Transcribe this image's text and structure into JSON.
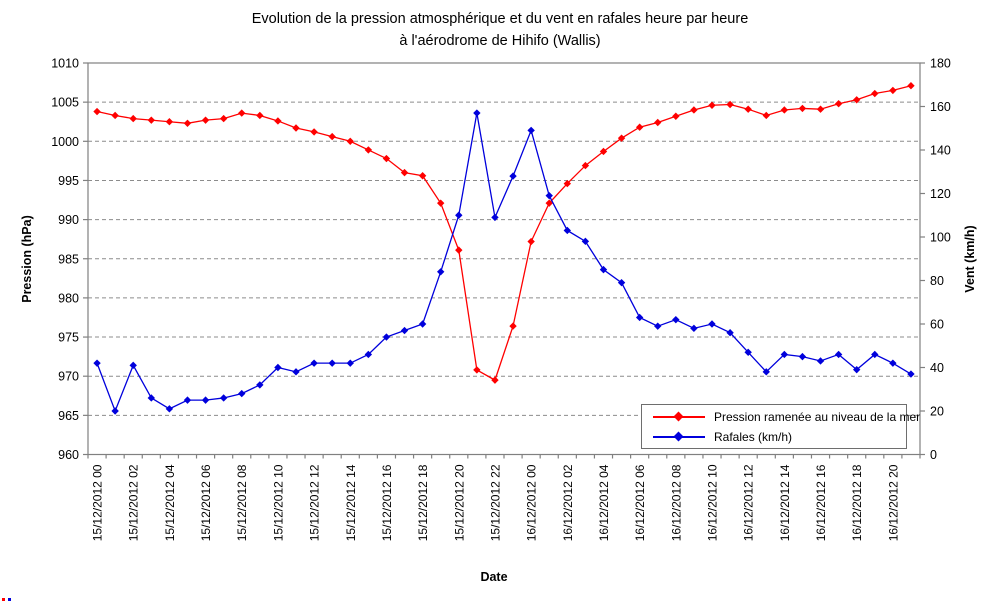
{
  "title": {
    "line1": "Evolution de la pression atmosphérique et du vent en rafales heure par heure",
    "line2": "à l'aérodrome de Hihifo (Wallis)"
  },
  "chart_data": {
    "type": "line",
    "title": "Evolution de la pression atmosphérique et du vent en rafales heure par heure à l'aérodrome de Hihifo (Wallis)",
    "x": [
      "15/12/2012 00",
      "15/12/2012 01",
      "15/12/2012 02",
      "15/12/2012 03",
      "15/12/2012 04",
      "15/12/2012 05",
      "15/12/2012 06",
      "15/12/2012 07",
      "15/12/2012 08",
      "15/12/2012 09",
      "15/12/2012 10",
      "15/12/2012 11",
      "15/12/2012 12",
      "15/12/2012 13",
      "15/12/2012 14",
      "15/12/2012 15",
      "15/12/2012 16",
      "15/12/2012 17",
      "15/12/2012 18",
      "15/12/2012 19",
      "15/12/2012 20",
      "15/12/2012 21",
      "15/12/2012 22",
      "15/12/2012 23",
      "16/12/2012 00",
      "16/12/2012 01",
      "16/12/2012 02",
      "16/12/2012 03",
      "16/12/2012 04",
      "16/12/2012 05",
      "16/12/2012 06",
      "16/12/2012 07",
      "16/12/2012 08",
      "16/12/2012 09",
      "16/12/2012 10",
      "16/12/2012 11",
      "16/12/2012 12",
      "16/12/2012 13",
      "16/12/2012 14",
      "16/12/2012 15",
      "16/12/2012 16",
      "16/12/2012 17",
      "16/12/2012 18",
      "16/12/2012 19",
      "16/12/2012 20",
      "16/12/2012 21"
    ],
    "x_tick_every": 2,
    "series": [
      {
        "name": "Pression ramenée au niveau de la mer",
        "yaxis": "left",
        "color": "#FF0000",
        "marker": "diamond",
        "values": [
          1003.8,
          1003.3,
          1002.9,
          1002.7,
          1002.5,
          1002.3,
          1002.7,
          1002.9,
          1003.6,
          1003.3,
          1002.6,
          1001.7,
          1001.2,
          1000.6,
          1000.0,
          998.9,
          997.8,
          996.0,
          995.6,
          992.1,
          986.1,
          970.8,
          969.5,
          976.4,
          987.2,
          992.1,
          994.6,
          996.9,
          998.7,
          1000.4,
          1001.8,
          1002.4,
          1003.2,
          1004.0,
          1004.6,
          1004.7,
          1004.1,
          1003.3,
          1004.0,
          1004.2,
          1004.1,
          1004.8,
          1005.3,
          1006.1,
          1006.5,
          1007.1
        ]
      },
      {
        "name": "Rafales (km/h)",
        "yaxis": "right",
        "color": "#0000DC",
        "marker": "diamond",
        "values": [
          42,
          20,
          41,
          26,
          21,
          25,
          25,
          26,
          28,
          32,
          40,
          38,
          42,
          42,
          42,
          46,
          54,
          57,
          60,
          84,
          110,
          157,
          109,
          128,
          149,
          119,
          103,
          98,
          85,
          79,
          63,
          59,
          62,
          58,
          60,
          56,
          47,
          38,
          46,
          45,
          43,
          46,
          39,
          46,
          42,
          37
        ]
      }
    ],
    "left_axis": {
      "title": "Pression (hPa)",
      "min": 960,
      "max": 1010,
      "step": 5
    },
    "right_axis": {
      "title": "Vent (km/h)",
      "min": 0,
      "max": 180,
      "step": 20
    },
    "x_axis": {
      "title": "Date"
    },
    "grid": {
      "horizontal": "dashed",
      "color": "#8c8c8c"
    },
    "axis_color": "#808080",
    "legend_position": "inside-bottom-right"
  }
}
